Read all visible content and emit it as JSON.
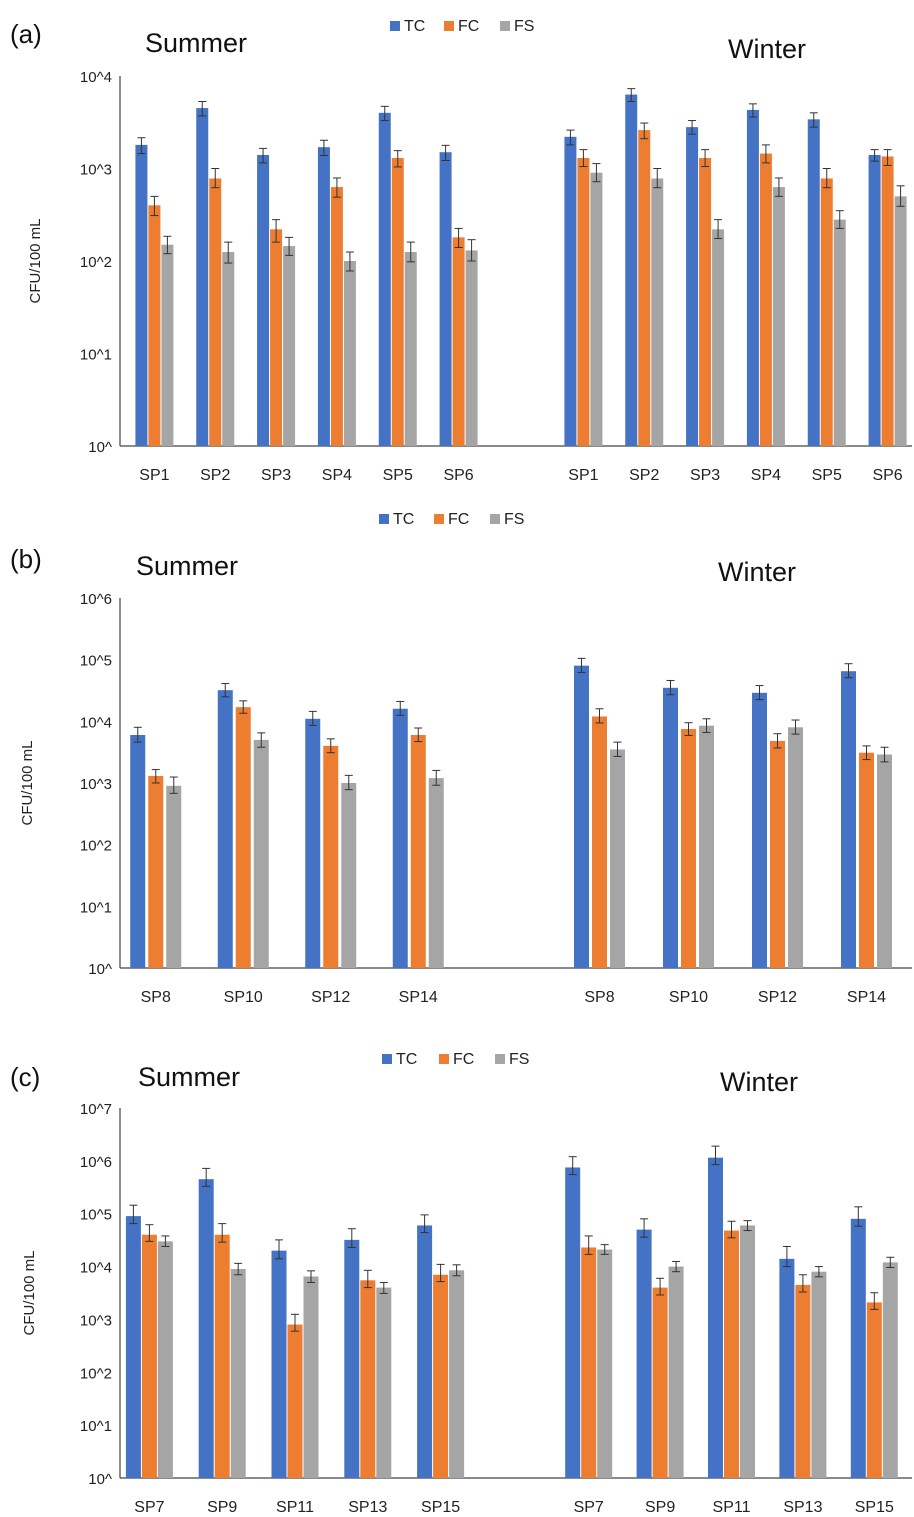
{
  "legend": {
    "items": [
      {
        "label": "TC",
        "color": "#4472C4"
      },
      {
        "label": "FC",
        "color": "#ED7D31"
      },
      {
        "label": "FS",
        "color": "#A5A5A5"
      }
    ]
  },
  "chart_data": [
    {
      "type": "bar",
      "panel_label": "(a)",
      "ylabel": "CFU/100 mL",
      "yscale": "log",
      "ylim": [
        1,
        10000
      ],
      "ytick_labels": [
        "10^",
        "10^1",
        "10^2",
        "10^3",
        "10^4"
      ],
      "groups": [
        {
          "title": "Summer",
          "categories": [
            "SP1",
            "SP2",
            "SP3",
            "SP4",
            "SP5",
            "SP6"
          ],
          "series": [
            {
              "name": "TC",
              "values": [
                1800,
                4500,
                1400,
                1700,
                4000,
                1500
              ],
              "err_low": [
                1450,
                3700,
                1150,
                1380,
                3300,
                1220
              ],
              "err_high": [
                2150,
                5300,
                1650,
                2020,
                4700,
                1780
              ]
            },
            {
              "name": "FC",
              "values": [
                400,
                780,
                220,
                630,
                1300,
                180
              ],
              "err_low": [
                310,
                620,
                160,
                490,
                1040,
                140
              ],
              "err_high": [
                500,
                1000,
                280,
                790,
                1560,
                225
              ]
            },
            {
              "name": "FS",
              "values": [
                150,
                125,
                145,
                100,
                125,
                130
              ],
              "err_low": [
                120,
                95,
                115,
                78,
                98,
                100
              ],
              "err_high": [
                185,
                160,
                180,
                125,
                160,
                170
              ]
            }
          ]
        },
        {
          "title": "Winter",
          "categories": [
            "SP1",
            "SP2",
            "SP3",
            "SP4",
            "SP5",
            "SP6"
          ],
          "series": [
            {
              "name": "TC",
              "values": [
                2200,
                6300,
                2800,
                4300,
                3400,
                1400
              ],
              "err_low": [
                1800,
                5300,
                2350,
                3600,
                2800,
                1200
              ],
              "err_high": [
                2600,
                7300,
                3300,
                5000,
                4000,
                1600
              ]
            },
            {
              "name": "FC",
              "values": [
                1300,
                2600,
                1300,
                1450,
                780,
                1350
              ],
              "err_low": [
                1050,
                2100,
                1050,
                1150,
                620,
                1080
              ],
              "err_high": [
                1600,
                3100,
                1600,
                1800,
                1000,
                1600
              ]
            },
            {
              "name": "FS",
              "values": [
                900,
                780,
                220,
                630,
                280,
                500
              ],
              "err_low": [
                720,
                620,
                175,
                500,
                225,
                390
              ],
              "err_high": [
                1130,
                1000,
                280,
                790,
                350,
                650
              ]
            }
          ]
        }
      ]
    },
    {
      "type": "bar",
      "panel_label": "(b)",
      "ylabel": "CFU/100 mL",
      "yscale": "log",
      "ylim": [
        1,
        1000000
      ],
      "ytick_labels": [
        "10^",
        "10^1",
        "10^2",
        "10^3",
        "10^4",
        "10^5",
        "10^6"
      ],
      "groups": [
        {
          "title": "Summer",
          "categories": [
            "SP8",
            "SP10",
            "SP12",
            "SP14"
          ],
          "series": [
            {
              "name": "TC",
              "values": [
                6000,
                32000,
                11000,
                16000
              ],
              "err_low": [
                4600,
                25000,
                8600,
                12500
              ],
              "err_high": [
                8000,
                41000,
                14500,
                21000
              ]
            },
            {
              "name": "FC",
              "values": [
                1300,
                17000,
                4000,
                6000
              ],
              "err_low": [
                1000,
                13500,
                3100,
                4700
              ],
              "err_high": [
                1650,
                21500,
                5200,
                7800
              ]
            },
            {
              "name": "FS",
              "values": [
                900,
                5000,
                1000,
                1200
              ],
              "err_low": [
                680,
                3800,
                780,
                920
              ],
              "err_high": [
                1250,
                6500,
                1330,
                1600
              ]
            }
          ]
        },
        {
          "title": "Winter",
          "categories": [
            "SP8",
            "SP10",
            "SP12",
            "SP14"
          ],
          "series": [
            {
              "name": "TC",
              "values": [
                80000,
                35000,
                29000,
                65000
              ],
              "err_low": [
                62000,
                27000,
                22500,
                51000
              ],
              "err_high": [
                105000,
                46000,
                38000,
                86000
              ]
            },
            {
              "name": "FC",
              "values": [
                12000,
                7500,
                4800,
                3100
              ],
              "err_low": [
                9400,
                5900,
                3700,
                2400
              ],
              "err_high": [
                16000,
                9500,
                6300,
                4000
              ]
            },
            {
              "name": "FS",
              "values": [
                3500,
                8500,
                8000,
                2900
              ],
              "err_low": [
                2700,
                6600,
                6200,
                2200
              ],
              "err_high": [
                4600,
                11000,
                10500,
                3800
              ]
            }
          ]
        }
      ]
    },
    {
      "type": "bar",
      "panel_label": "(c)",
      "ylabel": "CFU/100 mL",
      "yscale": "log",
      "ylim": [
        1,
        10000000
      ],
      "ytick_labels": [
        "10^",
        "10^1",
        "10^2",
        "10^3",
        "10^4",
        "10^5",
        "10^6",
        "10^7"
      ],
      "groups": [
        {
          "title": "Summer",
          "categories": [
            "SP7",
            "SP9",
            "SP11",
            "SP13",
            "SP15"
          ],
          "series": [
            {
              "name": "TC",
              "values": [
                90000,
                450000,
                20000,
                32000,
                60000
              ],
              "err_low": [
                65000,
                330000,
                14000,
                23000,
                44000
              ],
              "err_high": [
                145000,
                720000,
                32000,
                52000,
                95000
              ]
            },
            {
              "name": "FC",
              "values": [
                40000,
                40000,
                800,
                5500,
                7000
              ],
              "err_low": [
                30000,
                29000,
                600,
                4000,
                5200
              ],
              "err_high": [
                62000,
                65000,
                1250,
                8500,
                11000
              ]
            },
            {
              "name": "FS",
              "values": [
                30000,
                9000,
                6500,
                4000,
                8500
              ],
              "err_low": [
                24000,
                7000,
                5000,
                3100,
                6700
              ],
              "err_high": [
                38000,
                11500,
                8300,
                5000,
                10800
              ]
            }
          ]
        },
        {
          "title": "Winter",
          "categories": [
            "SP7",
            "SP9",
            "SP11",
            "SP13",
            "SP15"
          ],
          "series": [
            {
              "name": "TC",
              "values": [
                750000,
                50000,
                1150000,
                14000,
                80000
              ],
              "err_low": [
                550000,
                36000,
                850000,
                10000,
                58000
              ],
              "err_high": [
                1200000,
                80000,
                1900000,
                24000,
                135000
              ]
            },
            {
              "name": "FC",
              "values": [
                23000,
                4000,
                48000,
                4500,
                2100
              ],
              "err_low": [
                17000,
                2900,
                35000,
                3300,
                1550
              ],
              "err_high": [
                38000,
                6000,
                72000,
                7000,
                3200
              ]
            },
            {
              "name": "FS",
              "values": [
                21000,
                10000,
                60000,
                8000,
                12000
              ],
              "err_low": [
                17000,
                8000,
                48000,
                6400,
                9600
              ],
              "err_high": [
                26000,
                12500,
                74000,
                10000,
                15000
              ]
            }
          ]
        }
      ]
    }
  ]
}
